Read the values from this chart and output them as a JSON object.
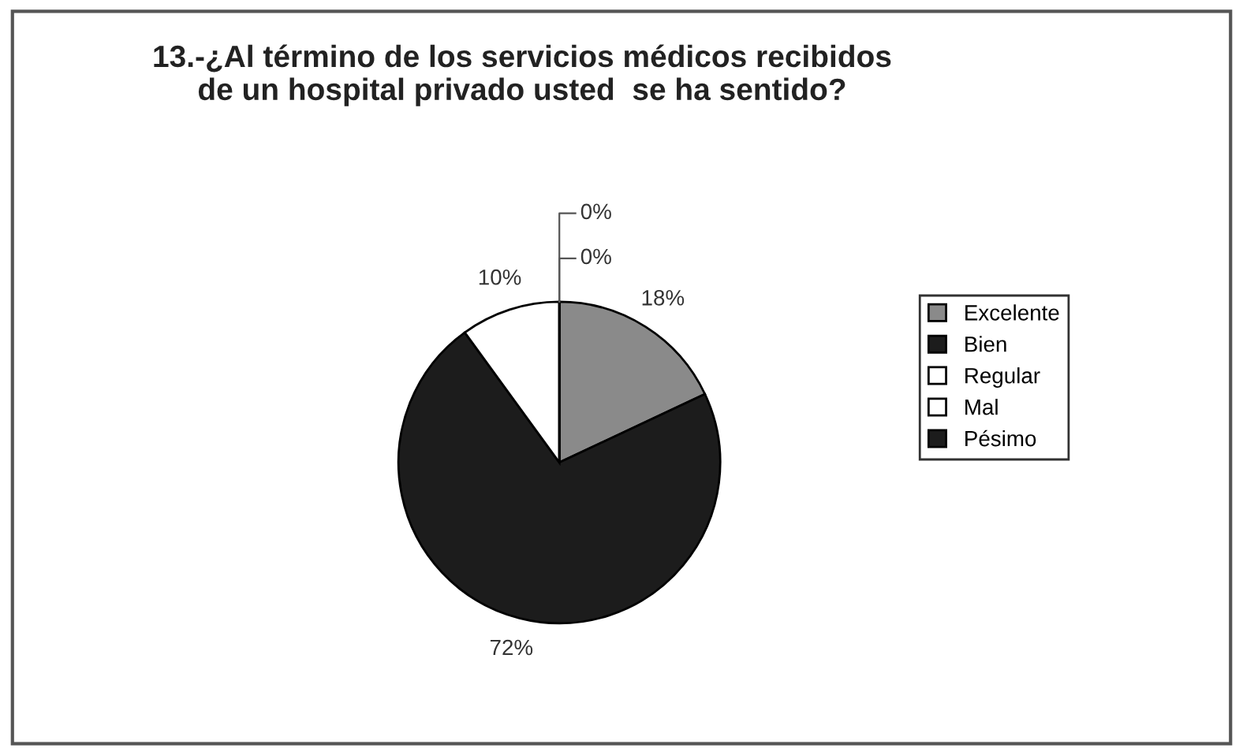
{
  "chart_data": {
    "type": "pie",
    "title": "13.-¿Al término de los servicios médicos recibidos\nde un hospital privado usted  se ha sentido?",
    "categories": [
      "Excelente",
      "Bien",
      "Regular",
      "Mal",
      "Pésimo"
    ],
    "values": [
      18,
      72,
      10,
      0,
      0
    ],
    "colors": [
      "#8a8a8a",
      "#1c1c1c",
      "#ffffff",
      "#ffffff",
      "#1c1c1c"
    ],
    "value_labels": [
      "18%",
      "72%",
      "10%",
      "0%",
      "0%"
    ],
    "legend": "right"
  }
}
